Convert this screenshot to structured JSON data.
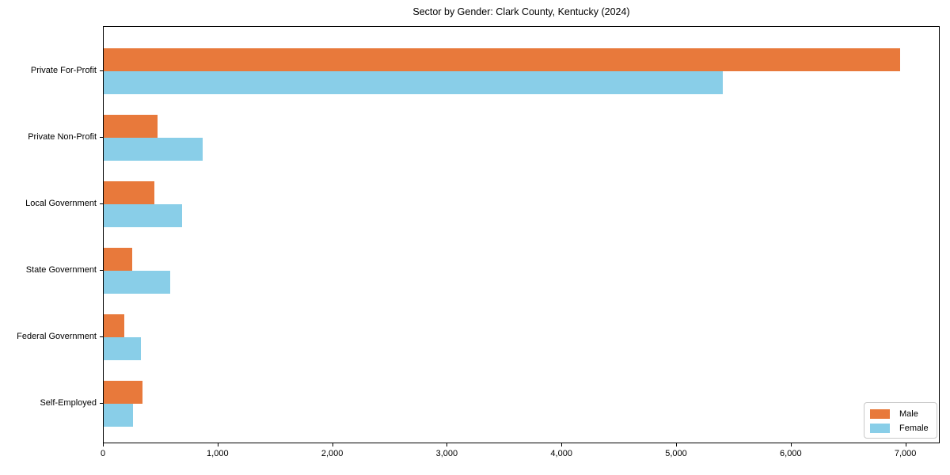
{
  "title": "Sector by Gender: Clark County, Kentucky (2024)",
  "chart_data": {
    "type": "bar",
    "orientation": "horizontal",
    "title": "Sector by Gender: Clark County, Kentucky (2024)",
    "xlabel": "",
    "ylabel": "",
    "categories": [
      "Private For-Profit",
      "Private Non-Profit",
      "Local Government",
      "State Government",
      "Federal Government",
      "Self-Employed"
    ],
    "series": [
      {
        "name": "Male",
        "color": "#E8793B",
        "values": [
          6950,
          470,
          440,
          250,
          180,
          340
        ]
      },
      {
        "name": "Female",
        "color": "#89CEE8",
        "values": [
          5400,
          860,
          680,
          580,
          325,
          255
        ]
      }
    ],
    "xlim": [
      0,
      7300
    ],
    "xticks": [
      0,
      1000,
      2000,
      3000,
      4000,
      5000,
      6000,
      7000
    ],
    "xtick_labels": [
      "0",
      "1,000",
      "2,000",
      "3,000",
      "4,000",
      "5,000",
      "6,000",
      "7,000"
    ],
    "grid": false,
    "legend": {
      "position": "lower right",
      "entries": [
        "Male",
        "Female"
      ]
    },
    "colors": {
      "male": "#E8793B",
      "female": "#89CEE8",
      "spine": "#000000",
      "text": "#000000"
    }
  }
}
